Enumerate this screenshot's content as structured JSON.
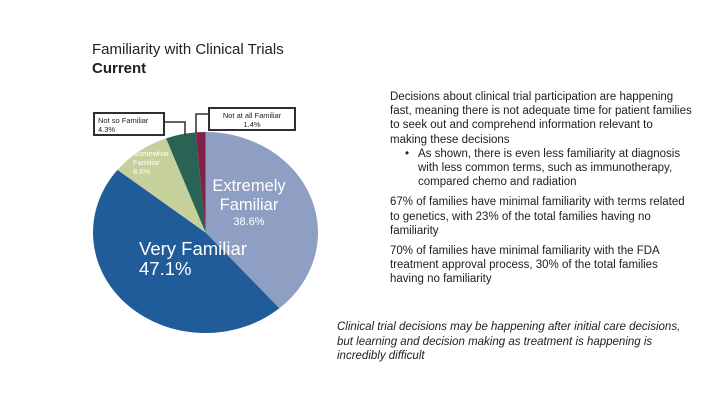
{
  "slide": {
    "title_line1": "Familiarity with Clinical Trials",
    "title_line2": "Current"
  },
  "chart_data": {
    "type": "pie",
    "title": "Familiarity with Clinical Trials",
    "subtitle": "Current",
    "start_angle_deg": 0,
    "direction": "clockwise",
    "slices": [
      {
        "label": "Extremely Familiar",
        "value": 38.6,
        "pct_label": "38.6%",
        "color": "#8F9EC3"
      },
      {
        "label": "Very Familiar",
        "value": 47.1,
        "pct_label": "47.1%",
        "color": "#1F5C99"
      },
      {
        "label": "Somewhat Familiar",
        "value": 8.6,
        "pct_label": "8.6%",
        "color": "#C5D09A"
      },
      {
        "label": "Not so Familiar",
        "value": 4.3,
        "pct_label": "4.3%",
        "color": "#286354"
      },
      {
        "label": "Not at all Familiar",
        "value": 1.4,
        "pct_label": "1.4%",
        "color": "#81224A"
      }
    ],
    "legend_position": "labels-on-slices-and-callouts"
  },
  "right_column": {
    "para1": "Decisions about clinical trial participation are happening fast, meaning there is not adequate time for patient families to seek out and comprehend information relevant to making these decisions",
    "bullet1": "As shown, there is even less familiarity at diagnosis with less common terms, such as immunotherapy, compared chemo and radiation",
    "para2": "67% of families have minimal familiarity with terms related to genetics, with 23% of the total families having no familiarity",
    "para3": "70% of families have minimal familiarity with the FDA treatment approval process, 30% of the total families having no familiarity"
  },
  "footer_note": "Clinical trial decisions may be happening after initial care decisions, but learning and decision making as treatment is happening is incredibly difficult",
  "colors": {
    "text": "#212121",
    "callout_border": "#2e2e2e",
    "background": "#ffffff"
  }
}
